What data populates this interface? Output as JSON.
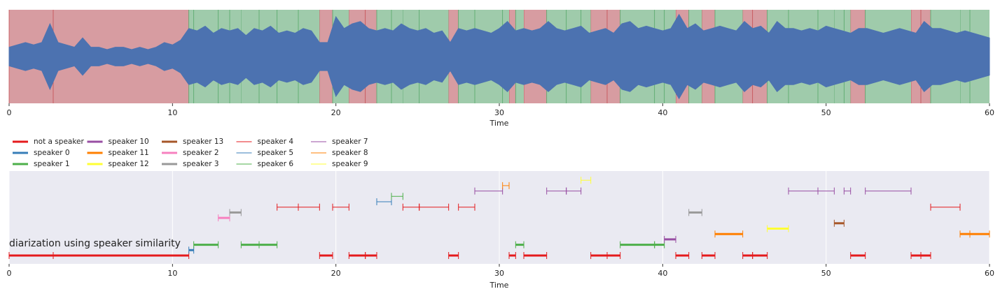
{
  "chart_data": [
    {
      "type": "waveform",
      "xlabel": "Time",
      "x": [
        0,
        0.5,
        1,
        1.5,
        2,
        2.5,
        3,
        3.5,
        4,
        4.5,
        5,
        5.5,
        6,
        6.5,
        7,
        7.5,
        8,
        8.5,
        9,
        9.5,
        10,
        10.5,
        11,
        11.5,
        12,
        12.5,
        13,
        13.5,
        14,
        14.5,
        15,
        15.5,
        16,
        16.5,
        17,
        17.5,
        18,
        18.5,
        19,
        19.5,
        20,
        20.5,
        21,
        21.5,
        22,
        22.5,
        23,
        23.5,
        24,
        24.5,
        25,
        25.5,
        26,
        26.5,
        27,
        27.5,
        28,
        28.5,
        29,
        29.5,
        30,
        30.5,
        31,
        31.5,
        32,
        32.5,
        33,
        33.5,
        34,
        34.5,
        35,
        35.5,
        36,
        36.5,
        37,
        37.5,
        38,
        38.5,
        39,
        39.5,
        40,
        40.5,
        41,
        41.5,
        42,
        42.5,
        43,
        43.5,
        44,
        44.5,
        45,
        45.5,
        46,
        46.5,
        47,
        47.5,
        48,
        48.5,
        49,
        49.5,
        50,
        50.5,
        51,
        51.5,
        52,
        52.5,
        53,
        53.5,
        54,
        54.5,
        55,
        55.5,
        56,
        56.5,
        57,
        57.5,
        58,
        58.5,
        59,
        59.5,
        60
      ],
      "values": [
        0.2,
        0.25,
        0.3,
        0.25,
        0.3,
        0.7,
        0.3,
        0.25,
        0.2,
        0.4,
        0.2,
        0.2,
        0.15,
        0.2,
        0.2,
        0.15,
        0.2,
        0.15,
        0.2,
        0.3,
        0.25,
        0.35,
        0.6,
        0.55,
        0.65,
        0.5,
        0.6,
        0.55,
        0.6,
        0.45,
        0.6,
        0.55,
        0.65,
        0.5,
        0.55,
        0.5,
        0.6,
        0.55,
        0.3,
        0.3,
        0.85,
        0.6,
        0.7,
        0.75,
        0.6,
        0.55,
        0.6,
        0.55,
        0.7,
        0.6,
        0.55,
        0.6,
        0.5,
        0.55,
        0.3,
        0.6,
        0.55,
        0.6,
        0.55,
        0.5,
        0.6,
        0.75,
        0.55,
        0.6,
        0.55,
        0.6,
        0.75,
        0.6,
        0.55,
        0.6,
        0.65,
        0.5,
        0.55,
        0.6,
        0.5,
        0.7,
        0.75,
        0.6,
        0.65,
        0.6,
        0.55,
        0.6,
        0.9,
        0.6,
        0.7,
        0.55,
        0.6,
        0.65,
        0.6,
        0.55,
        0.75,
        0.6,
        0.65,
        0.5,
        0.75,
        0.6,
        0.6,
        0.55,
        0.6,
        0.55,
        0.65,
        0.6,
        0.55,
        0.5,
        0.6,
        0.6,
        0.55,
        0.5,
        0.55,
        0.6,
        0.55,
        0.5,
        0.75,
        0.6,
        0.6,
        0.55,
        0.5,
        0.55,
        0.5,
        0.45,
        0.4
      ],
      "xlim": [
        0,
        60
      ],
      "xticks": [
        0,
        10,
        20,
        30,
        40,
        50,
        60
      ],
      "ylim": [
        -1,
        1
      ],
      "color": "#4c72b0",
      "nonspeech_color": "#d79ca1",
      "speech_color": "#9fcbab",
      "nonspeech_edge": "#c44e52",
      "speech_edge": "#55a868"
    },
    {
      "type": "timeline",
      "xlabel": "Time",
      "annotation": "diarization using speaker similarity",
      "xlim": [
        0,
        60
      ],
      "xticks": [
        0,
        10,
        20,
        30,
        40,
        50,
        60
      ],
      "grid": true,
      "background": "#eaeaf2",
      "series": [
        {
          "name": "not a speaker",
          "color": "#e41a1c",
          "linewidth": 3,
          "segments": [
            [
              0,
              2.7
            ],
            [
              2.7,
              11.0
            ],
            [
              19.0,
              19.8
            ],
            [
              20.8,
              21.8
            ],
            [
              21.8,
              22.5
            ],
            [
              26.9,
              27.5
            ],
            [
              30.6,
              31.0
            ],
            [
              31.5,
              32.9
            ],
            [
              35.6,
              36.6
            ],
            [
              36.6,
              37.4
            ],
            [
              40.8,
              41.6
            ],
            [
              42.4,
              43.2
            ],
            [
              44.9,
              45.5
            ],
            [
              45.5,
              46.4
            ],
            [
              51.5,
              52.4
            ],
            [
              55.2,
              55.8
            ],
            [
              55.8,
              56.4
            ]
          ]
        },
        {
          "name": "speaker 0",
          "color": "#377eb8",
          "linewidth": 3,
          "segments": [
            [
              11.0,
              11.3
            ]
          ]
        },
        {
          "name": "speaker 1",
          "color": "#4daf4a",
          "linewidth": 3,
          "segments": [
            [
              11.3,
              12.8
            ],
            [
              14.2,
              15.3
            ],
            [
              15.3,
              16.4
            ],
            [
              31.0,
              31.5
            ],
            [
              37.4,
              39.5
            ],
            [
              39.5,
              40.1
            ]
          ]
        },
        {
          "name": "speaker 10",
          "color": "#984ea3",
          "linewidth": 3,
          "segments": [
            [
              40.1,
              40.8
            ]
          ]
        },
        {
          "name": "speaker 11",
          "color": "#ff7f00",
          "linewidth": 3,
          "segments": [
            [
              43.2,
              44.9
            ],
            [
              58.2,
              58.8
            ],
            [
              58.8,
              60.0
            ]
          ]
        },
        {
          "name": "speaker 12",
          "color": "#ffff33",
          "linewidth": 3,
          "segments": [
            [
              46.4,
              47.7
            ]
          ]
        },
        {
          "name": "speaker 13",
          "color": "#a65628",
          "linewidth": 3,
          "segments": [
            [
              50.5,
              51.1
            ]
          ]
        },
        {
          "name": "speaker 2",
          "color": "#f781bf",
          "linewidth": 3,
          "segments": [
            [
              12.8,
              13.5
            ]
          ]
        },
        {
          "name": "speaker 3",
          "color": "#999999",
          "linewidth": 3,
          "segments": [
            [
              13.5,
              14.2
            ],
            [
              41.6,
              42.4
            ]
          ]
        },
        {
          "name": "speaker 4",
          "color": "#e41a1c",
          "linewidth": 1,
          "segments": [
            [
              16.4,
              17.7
            ],
            [
              17.7,
              19.0
            ],
            [
              19.8,
              20.8
            ],
            [
              24.1,
              25.1
            ],
            [
              25.1,
              26.9
            ],
            [
              27.5,
              28.5
            ],
            [
              56.4,
              58.2
            ]
          ]
        },
        {
          "name": "speaker 5",
          "color": "#377eb8",
          "linewidth": 1,
          "segments": [
            [
              22.5,
              23.4
            ]
          ]
        },
        {
          "name": "speaker 6",
          "color": "#4daf4a",
          "linewidth": 1,
          "segments": [
            [
              23.4,
              24.1
            ]
          ]
        },
        {
          "name": "speaker 7",
          "color": "#984ea3",
          "linewidth": 1,
          "segments": [
            [
              28.5,
              30.2
            ],
            [
              32.9,
              34.1
            ],
            [
              34.1,
              35.0
            ],
            [
              47.7,
              49.5
            ],
            [
              49.5,
              50.5
            ],
            [
              51.1,
              51.5
            ],
            [
              52.4,
              55.2
            ]
          ]
        },
        {
          "name": "speaker 8",
          "color": "#ff7f00",
          "linewidth": 1,
          "segments": [
            [
              30.2,
              30.6
            ]
          ]
        },
        {
          "name": "speaker 9",
          "color": "#ffff33",
          "linewidth": 1,
          "segments": [
            [
              35.0,
              35.6
            ]
          ]
        }
      ]
    }
  ]
}
